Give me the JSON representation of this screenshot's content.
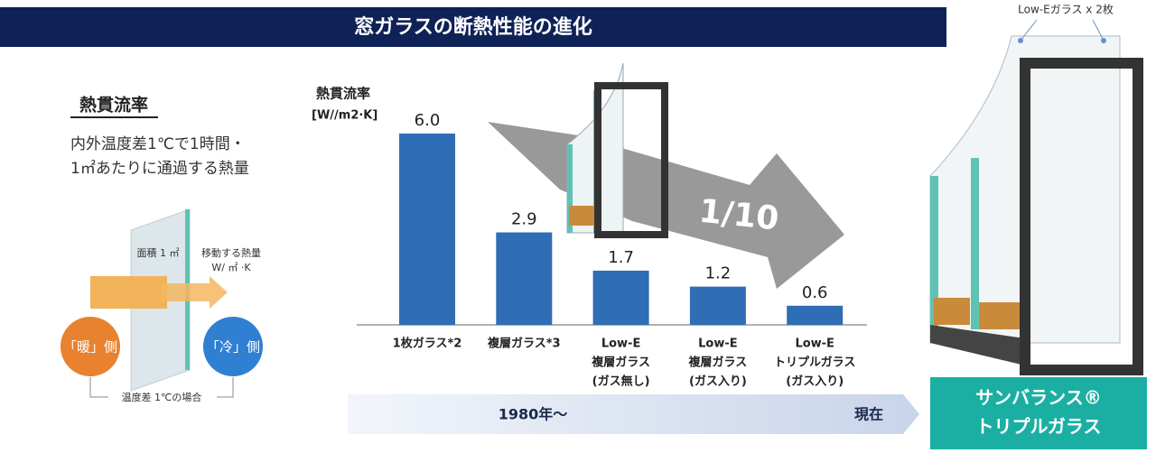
{
  "header": {
    "title": "窓ガラスの断熱性能の進化"
  },
  "info": {
    "heading": "熱貫流率",
    "line1": "内外温度差1℃で1時間・",
    "line2": "1㎡あたりに通過する熱量"
  },
  "diagram": {
    "area": "面積 1 ㎡",
    "heat": "移動する熱量",
    "unit": "W/ ㎡ ·K",
    "warm": "「暖」側",
    "cold": "「冷」側",
    "condition": "温度差 1℃の場合"
  },
  "arrow": {
    "label": "1/10"
  },
  "timeline": {
    "start": "1980年〜",
    "end": "現在"
  },
  "product": {
    "glass_note": "Low-Eガラス x 2枚",
    "name1": "サンバランス®",
    "name2": "トリプルガラス"
  },
  "chart_data": {
    "type": "bar",
    "title": "熱貫流率",
    "y_label": "[W//m2·K]",
    "color": "#2f6db5",
    "categories": [
      [
        "1枚ガラス*2"
      ],
      [
        "複層ガラス*3"
      ],
      [
        "Low-E",
        "複層ガラス",
        "(ガス無し)"
      ],
      [
        "Low-E",
        "複層ガラス",
        "(ガス入り)"
      ],
      [
        "Low-E",
        "トリプルガラス",
        "(ガス入り)"
      ]
    ],
    "values": [
      6,
      2.9,
      1.7,
      1.2,
      0.6
    ],
    "value_labels": [
      "6.0",
      "2.9",
      "1.7",
      "1.2",
      "0.6"
    ]
  }
}
